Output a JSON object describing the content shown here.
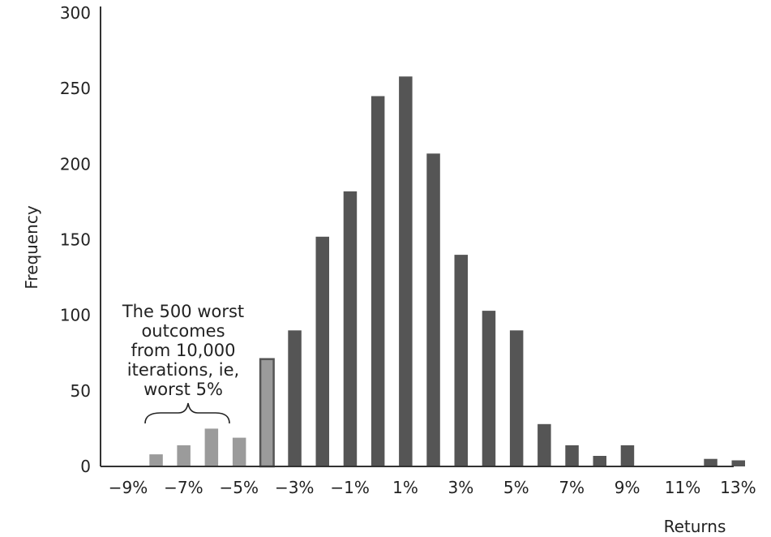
{
  "chart_data": {
    "type": "bar",
    "title": "",
    "xlabel": "Returns",
    "ylabel": "Frequency",
    "ylim": [
      0,
      300
    ],
    "yticks": [
      0,
      50,
      100,
      150,
      200,
      250,
      300
    ],
    "xtick_labels": [
      "−9%",
      "−7%",
      "−5%",
      "−3%",
      "−1%",
      "1%",
      "3%",
      "5%",
      "7%",
      "9%",
      "11%",
      "13%"
    ],
    "bins": [
      "-8.5%",
      "-7.5%",
      "-6.5%",
      "-5.5%",
      "-4.5%",
      "-3.5%",
      "-2.5%",
      "-1.5%",
      "-0.5%",
      "0.5%",
      "1.5%",
      "2.5%",
      "3.5%",
      "4.5%",
      "5.5%",
      "6.5%",
      "7.5%",
      "8.5%",
      "9.5%",
      "10.5%",
      "11.5%",
      "12.5%"
    ],
    "values": [
      8,
      14,
      25,
      19,
      71,
      90,
      152,
      182,
      245,
      258,
      207,
      140,
      103,
      90,
      28,
      14,
      7,
      14,
      0,
      0,
      5,
      4
    ],
    "tail_bins": 5,
    "colors": {
      "tail": "#9b9b9b",
      "body": "#555555",
      "axis": "#333333"
    },
    "grid": false,
    "annotation": {
      "lines": [
        "The 500 worst",
        "outcomes",
        "from 10,000",
        "iterations, ie,",
        "worst 5%"
      ]
    }
  }
}
